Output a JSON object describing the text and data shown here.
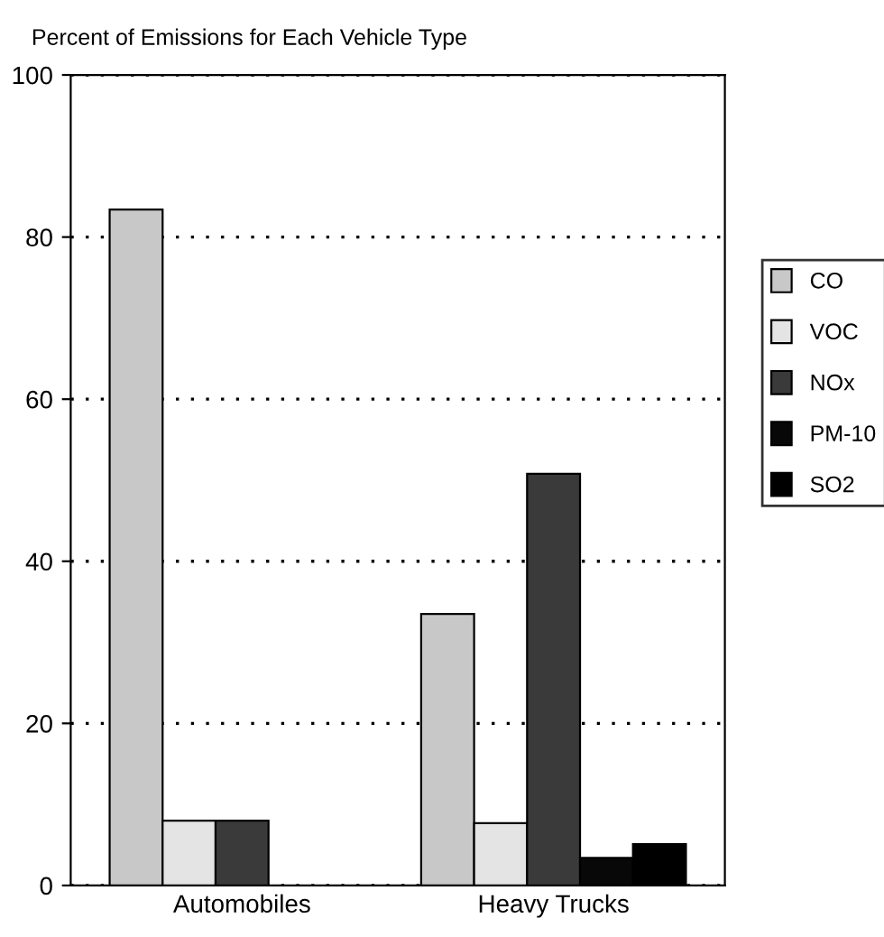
{
  "chart_data": {
    "type": "bar",
    "title": "Percent of Emissions for Each Vehicle Type",
    "categories": [
      "Automobiles",
      "Heavy Trucks"
    ],
    "series": [
      {
        "name": "CO",
        "color": "#c8c8c8",
        "values": [
          83.4,
          33.5
        ]
      },
      {
        "name": "VOC",
        "color": "#e4e4e4",
        "values": [
          8,
          7.7
        ]
      },
      {
        "name": "NOx",
        "color": "#3a3a3a",
        "values": [
          8,
          50.8
        ]
      },
      {
        "name": "PM-10",
        "color": "#080808",
        "values": [
          null,
          3.4
        ]
      },
      {
        "name": "SO2",
        "color": "#000000",
        "values": [
          null,
          5.1
        ]
      }
    ],
    "ylim": [
      0,
      100
    ],
    "yticks": [
      0,
      20,
      40,
      60,
      80,
      100
    ],
    "grid": "y",
    "legend": "right"
  }
}
